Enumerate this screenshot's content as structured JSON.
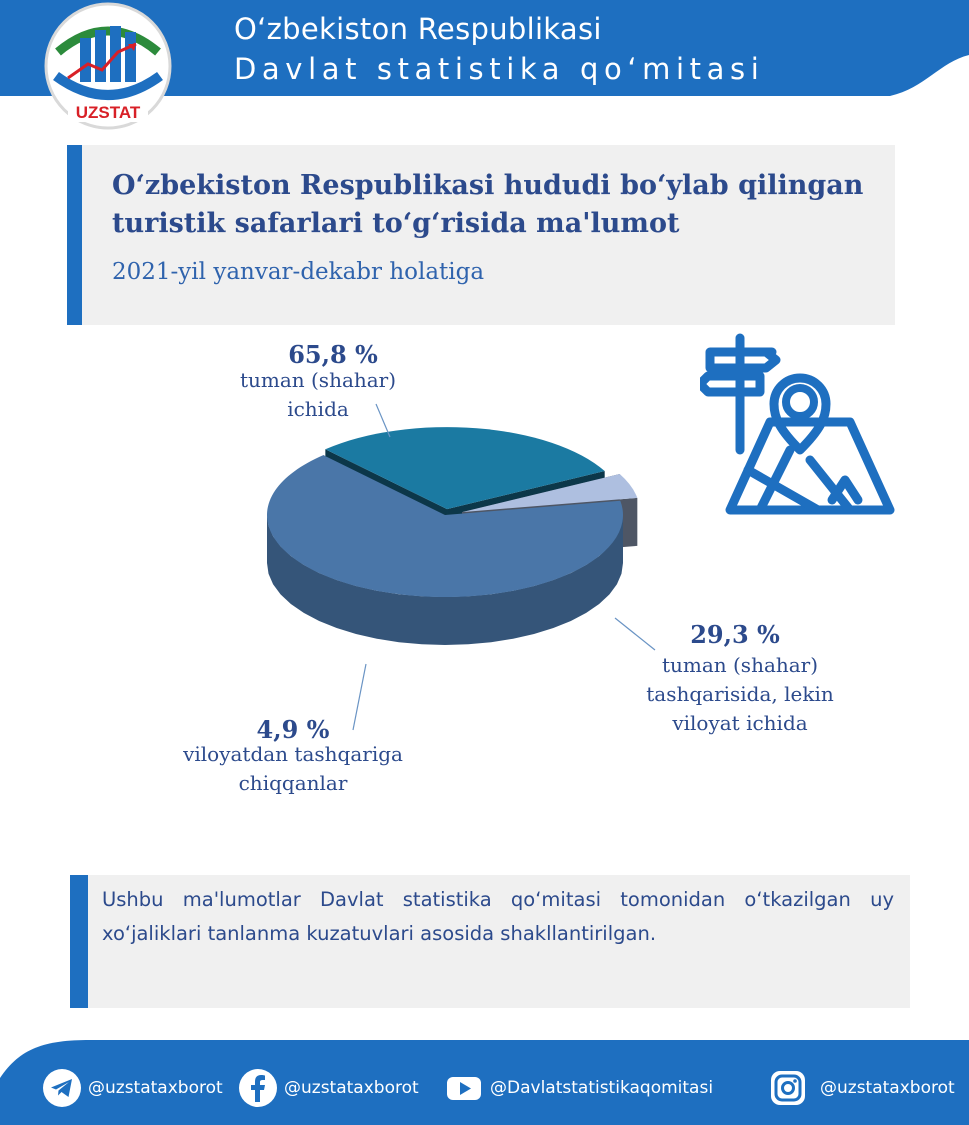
{
  "header": {
    "line1": "O‘zbekiston Respublikasi",
    "line2": "Davlat statistika qo‘mitasi",
    "logo_text": "UZSTAT",
    "colors": {
      "blue": "#1e6fc0",
      "red": "#d82027",
      "green": "#2c8b3c"
    }
  },
  "title": {
    "text": "O‘zbekiston Respublikasi hududi bo‘ylab qilingan turistik safarlari to‘g‘risida ma'lumot",
    "subtitle": "2021-yil yanvar-dekabr holatiga"
  },
  "chart_data": {
    "type": "pie",
    "slices": [
      {
        "label_lines": [
          "tuman (shahar)",
          "ichida"
        ],
        "value": 65.8,
        "display": "65,8 %",
        "color": "#4a76a8"
      },
      {
        "label_lines": [
          "tuman (shahar)",
          "tashqarisida, lekin",
          "viloyat ichida"
        ],
        "value": 29.3,
        "display": "29,3 %",
        "color": "#1b7aa2"
      },
      {
        "label_lines": [
          "viloyatdan tashqariga",
          "chiqqanlar"
        ],
        "value": 4.9,
        "display": "4,9 %",
        "color": "#aebfe0"
      }
    ]
  },
  "illustration": {
    "icon": "travel-map-signpost-icon"
  },
  "note": {
    "text": "Ushbu ma'lumotlar Davlat statistika qo‘mitasi tomonidan o‘tkazilgan uy xo‘jaliklari tanlanma kuzatuvlari asosida shakllantirilgan."
  },
  "footer": {
    "telegram": "@uzstataxborot",
    "facebook": "@uzstataxborot",
    "youtube": "@Davlatstatistikaqomitasi",
    "instagram": "@uzstataxborot"
  }
}
